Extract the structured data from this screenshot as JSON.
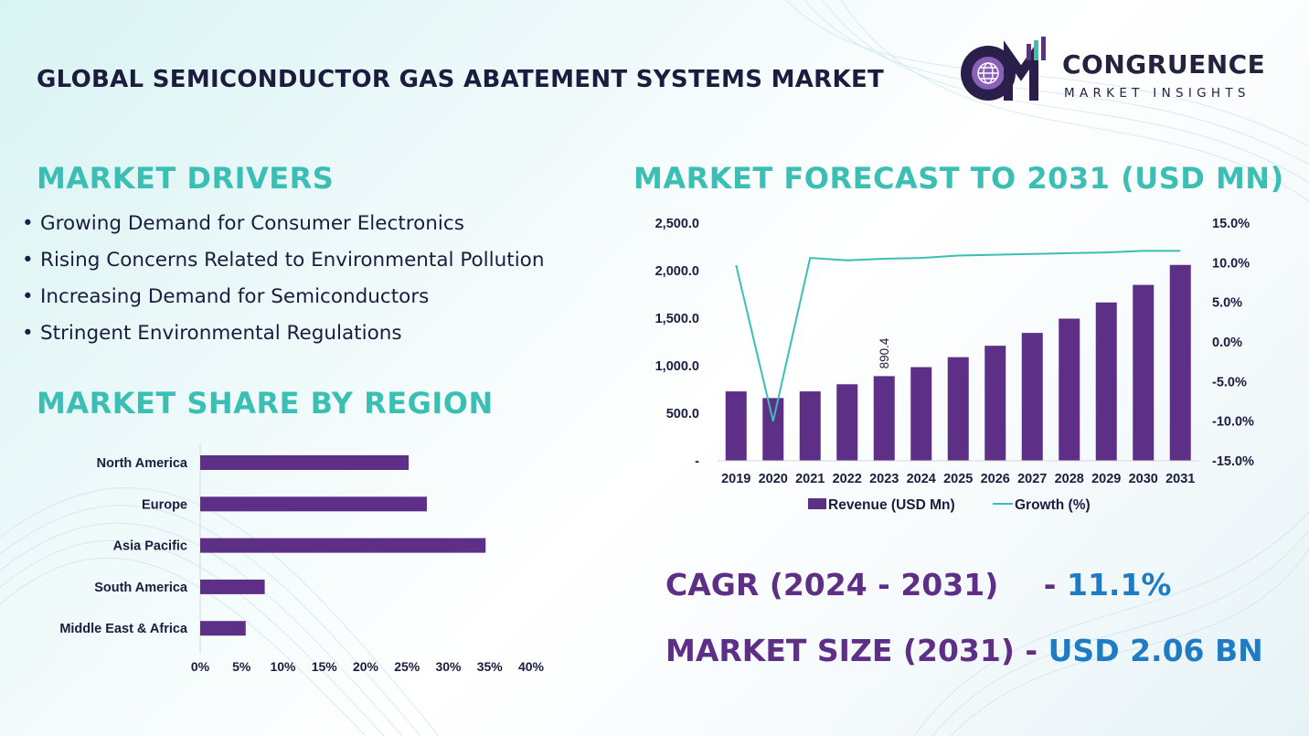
{
  "header": {
    "title": "GLOBAL SEMICONDUCTOR GAS ABATEMENT SYSTEMS MARKET",
    "logo_brand": "CONGRUENCE",
    "logo_tagline": "MARKET INSIGHTS"
  },
  "drivers": {
    "heading": "MARKET DRIVERS",
    "items": [
      "Growing Demand for Consumer Electronics",
      "Rising Concerns Related to Environmental Pollution",
      "Increasing Demand for Semiconductors",
      "Stringent Environmental Regulations"
    ]
  },
  "region": {
    "heading": "MARKET SHARE BY REGION"
  },
  "forecast": {
    "heading": "MARKET FORECAST TO 2031 (USD MN)"
  },
  "kpis": {
    "cagr_label": "CAGR (2024 - 2031)",
    "cagr_sep": "-",
    "cagr_value": "11.1%",
    "size_label": "MARKET SIZE (2031)",
    "size_sep": "-",
    "size_value": "USD 2.06 BN"
  },
  "colors": {
    "bar": "#5e2f86",
    "line": "#3bbfb5",
    "heading": "#3bbfb5",
    "kpi_label": "#5e2f86",
    "kpi_value": "#1f7cc4"
  },
  "chart_data": [
    {
      "type": "bar",
      "orientation": "horizontal",
      "categories": [
        "North America",
        "Europe",
        "Asia Pacific",
        "South America",
        "Middle East & Africa"
      ],
      "values": [
        25.2,
        27.4,
        34.5,
        7.8,
        5.5
      ],
      "xlim": [
        0,
        40
      ],
      "x_ticks": [
        "0%",
        "5%",
        "10%",
        "15%",
        "20%",
        "25%",
        "30%",
        "35%",
        "40%"
      ],
      "grid": false
    },
    {
      "type": "bar+line",
      "categories": [
        "2019",
        "2020",
        "2021",
        "2022",
        "2023",
        "2024",
        "2025",
        "2026",
        "2027",
        "2028",
        "2029",
        "2030",
        "2031"
      ],
      "series": [
        {
          "name": "Revenue (USD Mn)",
          "type": "bar",
          "axis": "left",
          "values": [
            730,
            660,
            730,
            805,
            890.4,
            985,
            1090,
            1210,
            1345,
            1495,
            1665,
            1850,
            2060
          ]
        },
        {
          "name": "Growth (%)",
          "type": "line",
          "axis": "right",
          "values": [
            9.7,
            -10.0,
            10.6,
            10.3,
            10.5,
            10.6,
            10.9,
            11.0,
            11.1,
            11.2,
            11.3,
            11.5,
            11.5
          ]
        }
      ],
      "data_labels": [
        {
          "category": "2023",
          "text": "890.4"
        }
      ],
      "y_left_ticks": [
        "-",
        "500.0",
        "1,000.0",
        "1,500.0",
        "2,000.0",
        "2,500.0"
      ],
      "ylim_left": [
        0,
        2500
      ],
      "y_right_ticks": [
        "-15.0%",
        "-10.0%",
        "-5.0%",
        "0.0%",
        "5.0%",
        "10.0%",
        "15.0%"
      ],
      "ylim_right": [
        -15,
        15
      ],
      "legend": "bottom",
      "grid": false
    }
  ]
}
